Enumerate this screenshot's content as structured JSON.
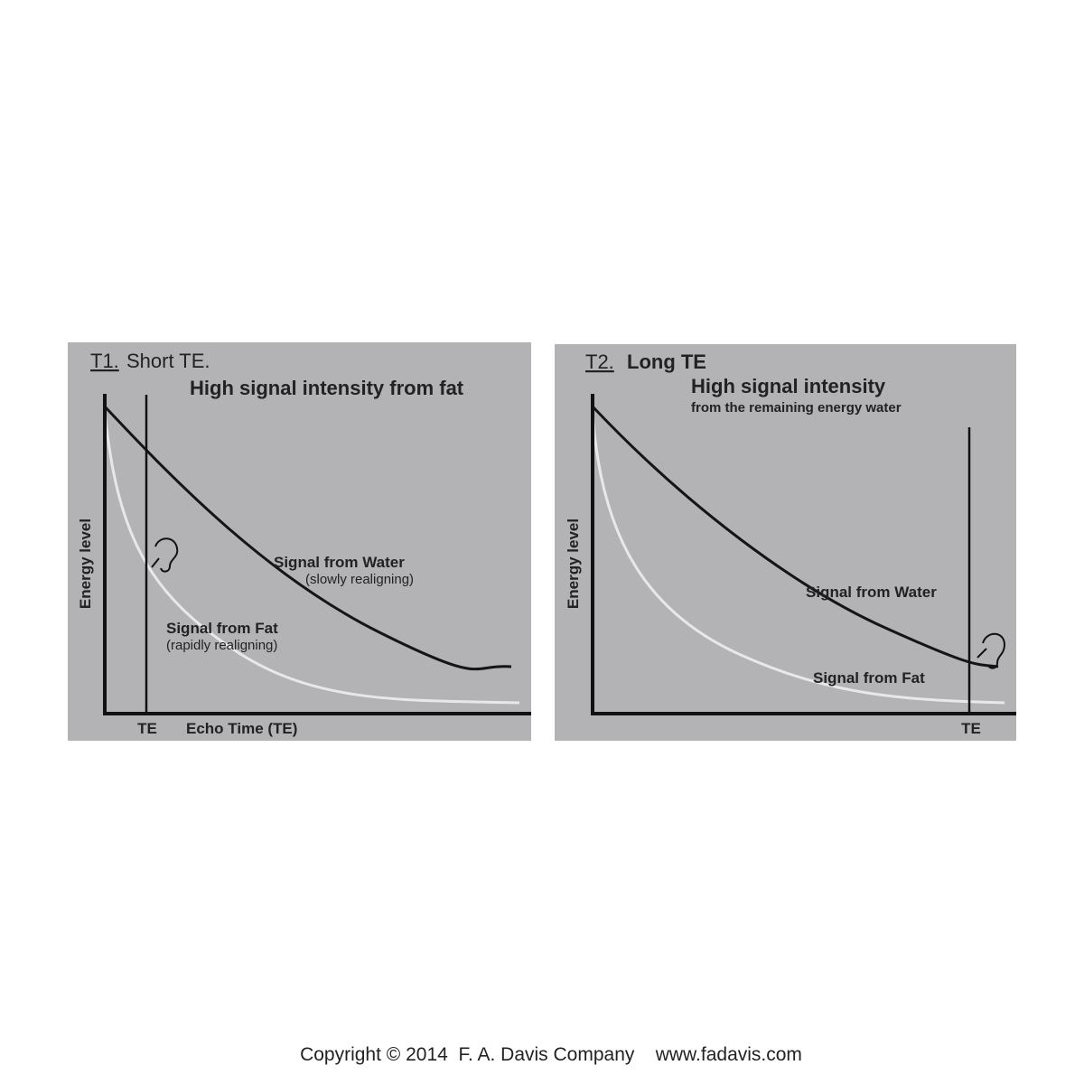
{
  "panels": [
    {
      "label": "T1.",
      "title": "Short TE.",
      "heading": "High signal intensity from fat",
      "y_label": "Energy level",
      "water_label": "Signal from Water",
      "water_note": "(slowly realigning)",
      "fat_label": "Signal from Fat",
      "fat_note": "(rapidly realigning)",
      "te_label": "TE",
      "x_label": "Echo Time (TE)"
    },
    {
      "label": "T2.",
      "title": "Long TE",
      "heading": "High signal intensity",
      "subheading": "from the remaining energy water",
      "y_label": "Energy level",
      "water_label": "Signal from Water",
      "fat_label": "Signal from Fat",
      "te_label": "TE"
    }
  ],
  "footer": "Copyright © 2014  F. A. Davis Company    www.fadavis.com"
}
